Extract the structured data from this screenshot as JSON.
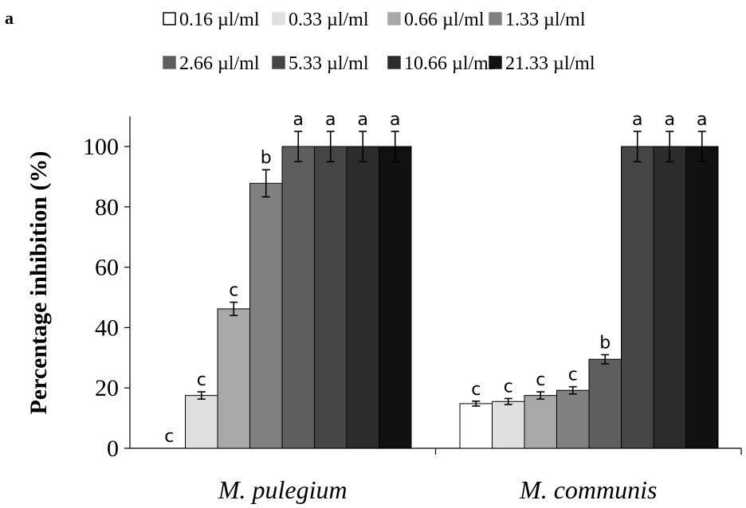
{
  "panel_label": "a",
  "chart_data": {
    "type": "bar",
    "ylabel": "Percentage inhibition (%)",
    "xlabel": "",
    "ylim": [
      0,
      110
    ],
    "yticks": [
      0,
      20,
      40,
      60,
      80,
      100
    ],
    "grid": false,
    "legend_position": "top",
    "categories": [
      "M. pulegium",
      "M. communis"
    ],
    "series": [
      {
        "name": "0.16 µl/ml",
        "color": "#ffffff",
        "values": [
          0,
          14.8
        ],
        "errors": [
          0,
          0.8
        ],
        "letters": [
          "c",
          "c"
        ]
      },
      {
        "name": "0.33  µl/ml",
        "color": "#e0e0e0",
        "values": [
          17.5,
          15.5
        ],
        "errors": [
          1.2,
          1.0
        ],
        "letters": [
          "c",
          "c"
        ]
      },
      {
        "name": "0.66  µl/ml",
        "color": "#a8a8a8",
        "values": [
          46.2,
          17.5
        ],
        "errors": [
          2.2,
          1.2
        ],
        "letters": [
          "c",
          "c"
        ]
      },
      {
        "name": "1.33  µl/ml",
        "color": "#808080",
        "values": [
          87.8,
          19.2
        ],
        "errors": [
          4.5,
          1.2
        ],
        "letters": [
          "b",
          "c"
        ]
      },
      {
        "name": "2.66  µl/ml",
        "color": "#5e5e5e",
        "values": [
          100,
          29.5
        ],
        "errors": [
          5,
          1.5
        ],
        "letters": [
          "a",
          "b"
        ]
      },
      {
        "name": "5.33  µl/ml",
        "color": "#454545",
        "values": [
          100,
          100
        ],
        "errors": [
          5,
          5
        ],
        "letters": [
          "a",
          "a"
        ]
      },
      {
        "name": "10.66  µl/ml",
        "color": "#2c2c2c",
        "values": [
          100,
          100
        ],
        "errors": [
          5,
          5
        ],
        "letters": [
          "a",
          "a"
        ]
      },
      {
        "name": "21.33  µl/ml",
        "color": "#111111",
        "values": [
          100,
          100
        ],
        "errors": [
          5,
          5
        ],
        "letters": [
          "a",
          "a"
        ]
      }
    ]
  }
}
